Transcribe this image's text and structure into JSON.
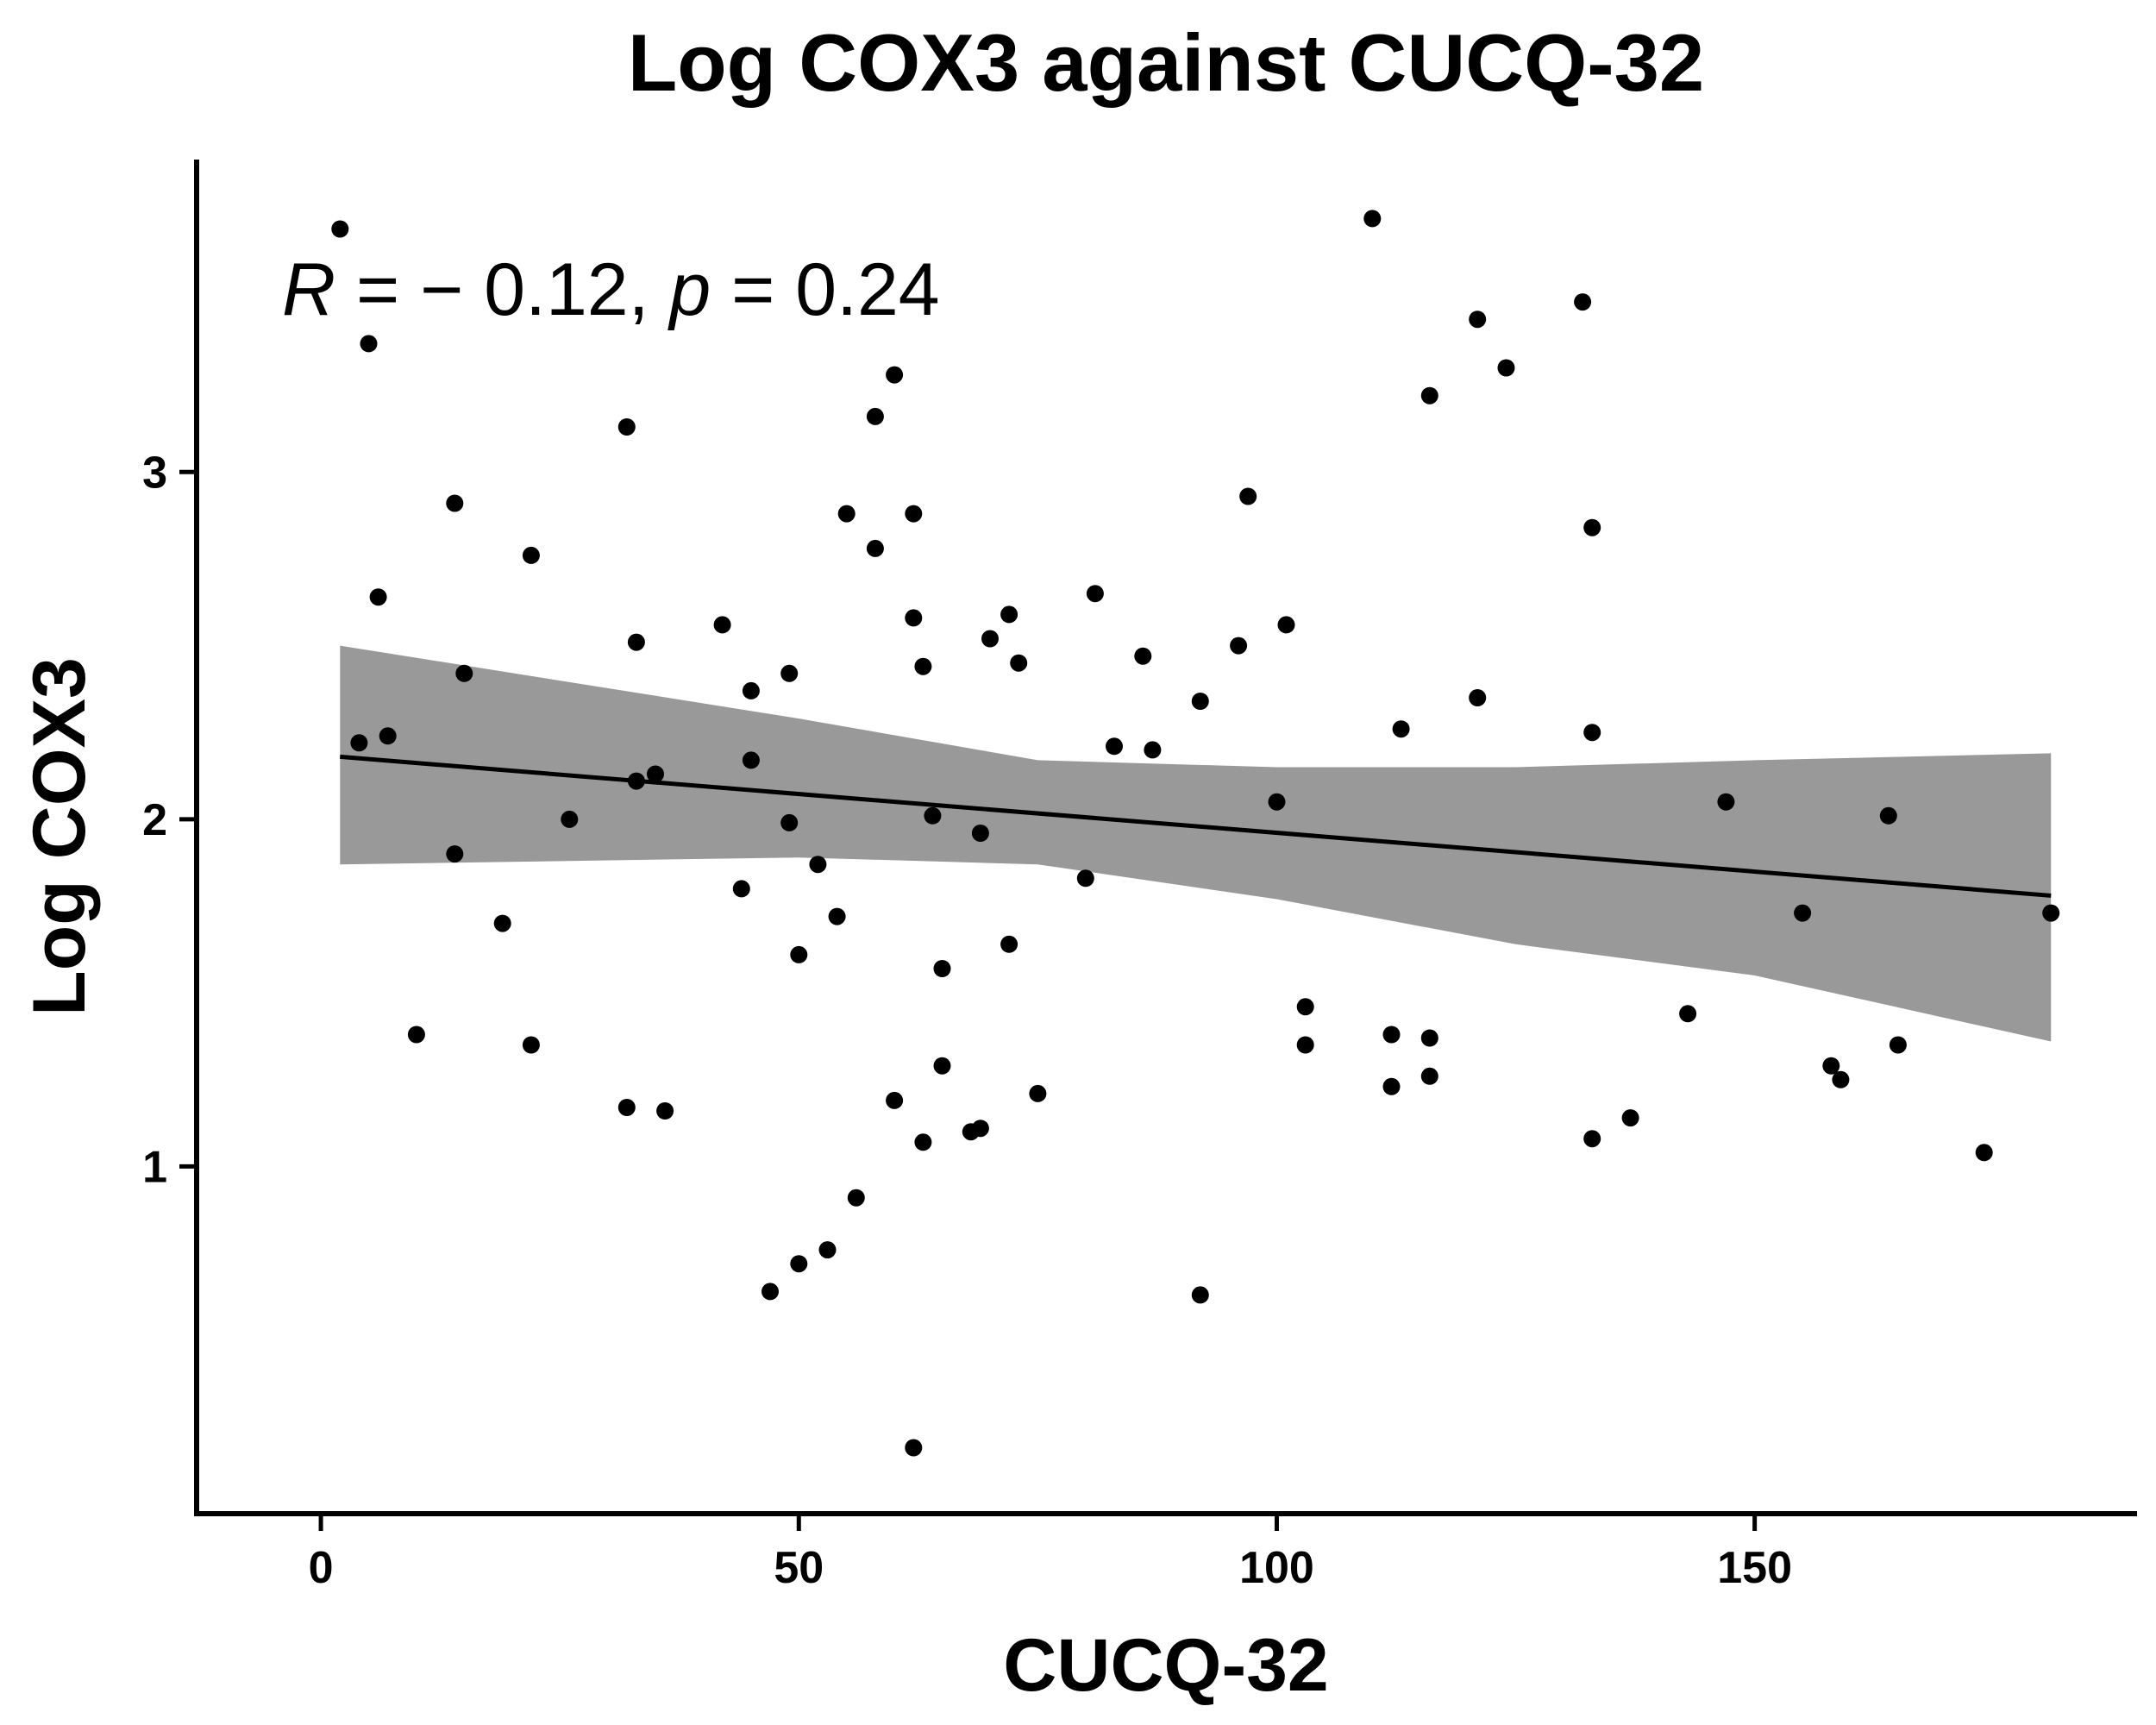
{
  "chart_data": {
    "type": "scatter",
    "title": "Log COX3 against CUCQ-32",
    "xlabel": "CUCQ-32",
    "ylabel": "Log COX3",
    "xlim": [
      -13,
      190
    ],
    "ylim": [
      0,
      3.9
    ],
    "x_ticks": [
      0,
      50,
      100,
      150
    ],
    "y_ticks": [
      1,
      2,
      3
    ],
    "grid": false,
    "annotation": {
      "R_symbol": "R",
      "R_text": " = − 0.12, ",
      "p_symbol": "p",
      "p_text": " = 0.24"
    },
    "points": [
      {
        "x": 2,
        "y": 3.7
      },
      {
        "x": 4,
        "y": 2.22
      },
      {
        "x": 5,
        "y": 3.37
      },
      {
        "x": 6,
        "y": 2.64
      },
      {
        "x": 7,
        "y": 2.24
      },
      {
        "x": 10,
        "y": 1.38
      },
      {
        "x": 14,
        "y": 2.91
      },
      {
        "x": 14,
        "y": 1.9
      },
      {
        "x": 15,
        "y": 2.42
      },
      {
        "x": 19,
        "y": 1.7
      },
      {
        "x": 22,
        "y": 2.76
      },
      {
        "x": 22,
        "y": 1.35
      },
      {
        "x": 26,
        "y": 2.0
      },
      {
        "x": 32,
        "y": 3.13
      },
      {
        "x": 32,
        "y": 1.17
      },
      {
        "x": 33,
        "y": 2.51
      },
      {
        "x": 33,
        "y": 2.11
      },
      {
        "x": 35,
        "y": 2.13
      },
      {
        "x": 36,
        "y": 1.16
      },
      {
        "x": 42,
        "y": 2.56
      },
      {
        "x": 44,
        "y": 1.8
      },
      {
        "x": 45,
        "y": 2.37
      },
      {
        "x": 45,
        "y": 2.17
      },
      {
        "x": 47,
        "y": 0.64
      },
      {
        "x": 49,
        "y": 2.42
      },
      {
        "x": 49,
        "y": 1.99
      },
      {
        "x": 50,
        "y": 1.61
      },
      {
        "x": 50,
        "y": 0.72
      },
      {
        "x": 52,
        "y": 1.87
      },
      {
        "x": 53,
        "y": 0.76
      },
      {
        "x": 54,
        "y": 1.72
      },
      {
        "x": 55,
        "y": 2.88
      },
      {
        "x": 56,
        "y": 0.91
      },
      {
        "x": 58,
        "y": 3.16
      },
      {
        "x": 58,
        "y": 2.78
      },
      {
        "x": 60,
        "y": 3.28
      },
      {
        "x": 60,
        "y": 1.19
      },
      {
        "x": 62,
        "y": 2.88
      },
      {
        "x": 62,
        "y": 2.58
      },
      {
        "x": 62,
        "y": 0.19
      },
      {
        "x": 63,
        "y": 2.44
      },
      {
        "x": 63,
        "y": 1.07
      },
      {
        "x": 64,
        "y": 2.01
      },
      {
        "x": 65,
        "y": 1.57
      },
      {
        "x": 65,
        "y": 1.29
      },
      {
        "x": 68,
        "y": 1.1
      },
      {
        "x": 69,
        "y": 1.96
      },
      {
        "x": 69,
        "y": 1.11
      },
      {
        "x": 70,
        "y": 2.52
      },
      {
        "x": 72,
        "y": 2.59
      },
      {
        "x": 72,
        "y": 1.64
      },
      {
        "x": 73,
        "y": 2.45
      },
      {
        "x": 75,
        "y": 1.21
      },
      {
        "x": 80,
        "y": 1.83
      },
      {
        "x": 81,
        "y": 2.65
      },
      {
        "x": 83,
        "y": 2.21
      },
      {
        "x": 86,
        "y": 2.47
      },
      {
        "x": 87,
        "y": 2.2
      },
      {
        "x": 92,
        "y": 2.34
      },
      {
        "x": 92,
        "y": 0.63
      },
      {
        "x": 96,
        "y": 2.5
      },
      {
        "x": 97,
        "y": 2.93
      },
      {
        "x": 100,
        "y": 2.05
      },
      {
        "x": 101,
        "y": 2.56
      },
      {
        "x": 103,
        "y": 1.46
      },
      {
        "x": 103,
        "y": 1.35
      },
      {
        "x": 110,
        "y": 3.73
      },
      {
        "x": 112,
        "y": 1.38
      },
      {
        "x": 112,
        "y": 1.23
      },
      {
        "x": 113,
        "y": 2.26
      },
      {
        "x": 116,
        "y": 3.22
      },
      {
        "x": 116,
        "y": 1.37
      },
      {
        "x": 116,
        "y": 1.26
      },
      {
        "x": 121,
        "y": 3.44
      },
      {
        "x": 121,
        "y": 2.35
      },
      {
        "x": 124,
        "y": 3.3
      },
      {
        "x": 132,
        "y": 3.49
      },
      {
        "x": 133,
        "y": 2.84
      },
      {
        "x": 133,
        "y": 2.25
      },
      {
        "x": 133,
        "y": 1.08
      },
      {
        "x": 137,
        "y": 1.14
      },
      {
        "x": 143,
        "y": 1.44
      },
      {
        "x": 147,
        "y": 2.05
      },
      {
        "x": 155,
        "y": 1.73
      },
      {
        "x": 158,
        "y": 1.29
      },
      {
        "x": 159,
        "y": 1.25
      },
      {
        "x": 164,
        "y": 2.01
      },
      {
        "x": 165,
        "y": 1.35
      },
      {
        "x": 174,
        "y": 1.04
      },
      {
        "x": 181,
        "y": 1.73
      }
    ],
    "fit_line": {
      "x": [
        2,
        181
      ],
      "y": [
        2.18,
        1.78
      ]
    },
    "confidence_band": {
      "x": [
        2,
        50,
        75,
        100,
        125,
        150,
        181
      ],
      "lower": [
        1.87,
        1.89,
        1.87,
        1.77,
        1.64,
        1.55,
        1.36
      ],
      "upper": [
        2.5,
        2.29,
        2.17,
        2.15,
        2.15,
        2.17,
        2.19
      ]
    },
    "colors": {
      "points": "#000000",
      "band": "#999999",
      "line": "#000000",
      "axis": "#000000"
    }
  }
}
